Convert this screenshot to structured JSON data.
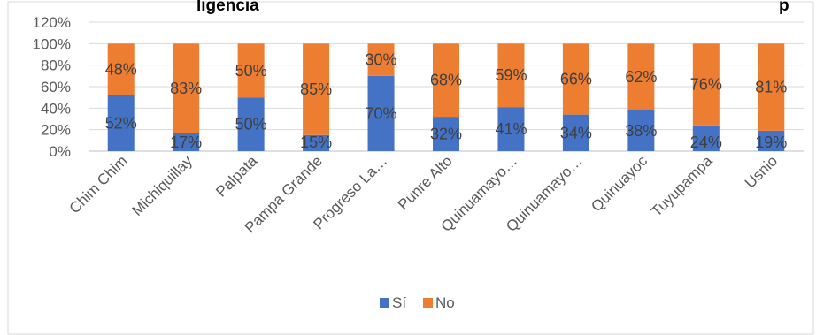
{
  "chart_data": {
    "type": "bar",
    "stacked": true,
    "percent_stacked": true,
    "title_fragment_left": "ligencia",
    "title_fragment_right": "p",
    "categories": [
      "Chim Chim",
      "Michiquillay",
      "Palpata",
      "Pampa Grande",
      "Progreso La…",
      "Punre Alto",
      "Quinuamayo…",
      "Quinuamayo…",
      "Quinuayoc",
      "Tuyupampa",
      "Usnio"
    ],
    "y_ticks": [
      "0%",
      "20%",
      "40%",
      "60%",
      "80%",
      "100%",
      "120%"
    ],
    "ylim": [
      0,
      120
    ],
    "grid": true,
    "legend_position": "bottom",
    "series": [
      {
        "name": "Sí",
        "color": "#4472C4",
        "values": [
          52,
          17,
          50,
          15,
          70,
          32,
          41,
          34,
          38,
          24,
          19
        ],
        "labels": [
          "52%",
          "17%",
          "50%",
          "15%",
          "70%",
          "32%",
          "41%",
          "34%",
          "38%",
          "24%",
          "19%"
        ]
      },
      {
        "name": "No",
        "color": "#ED7D31",
        "values": [
          48,
          83,
          50,
          85,
          30,
          68,
          59,
          66,
          62,
          76,
          81
        ],
        "labels": [
          "48%",
          "83%",
          "50%",
          "85%",
          "30%",
          "68%",
          "59%",
          "66%",
          "62%",
          "76%",
          "81%"
        ]
      }
    ]
  }
}
